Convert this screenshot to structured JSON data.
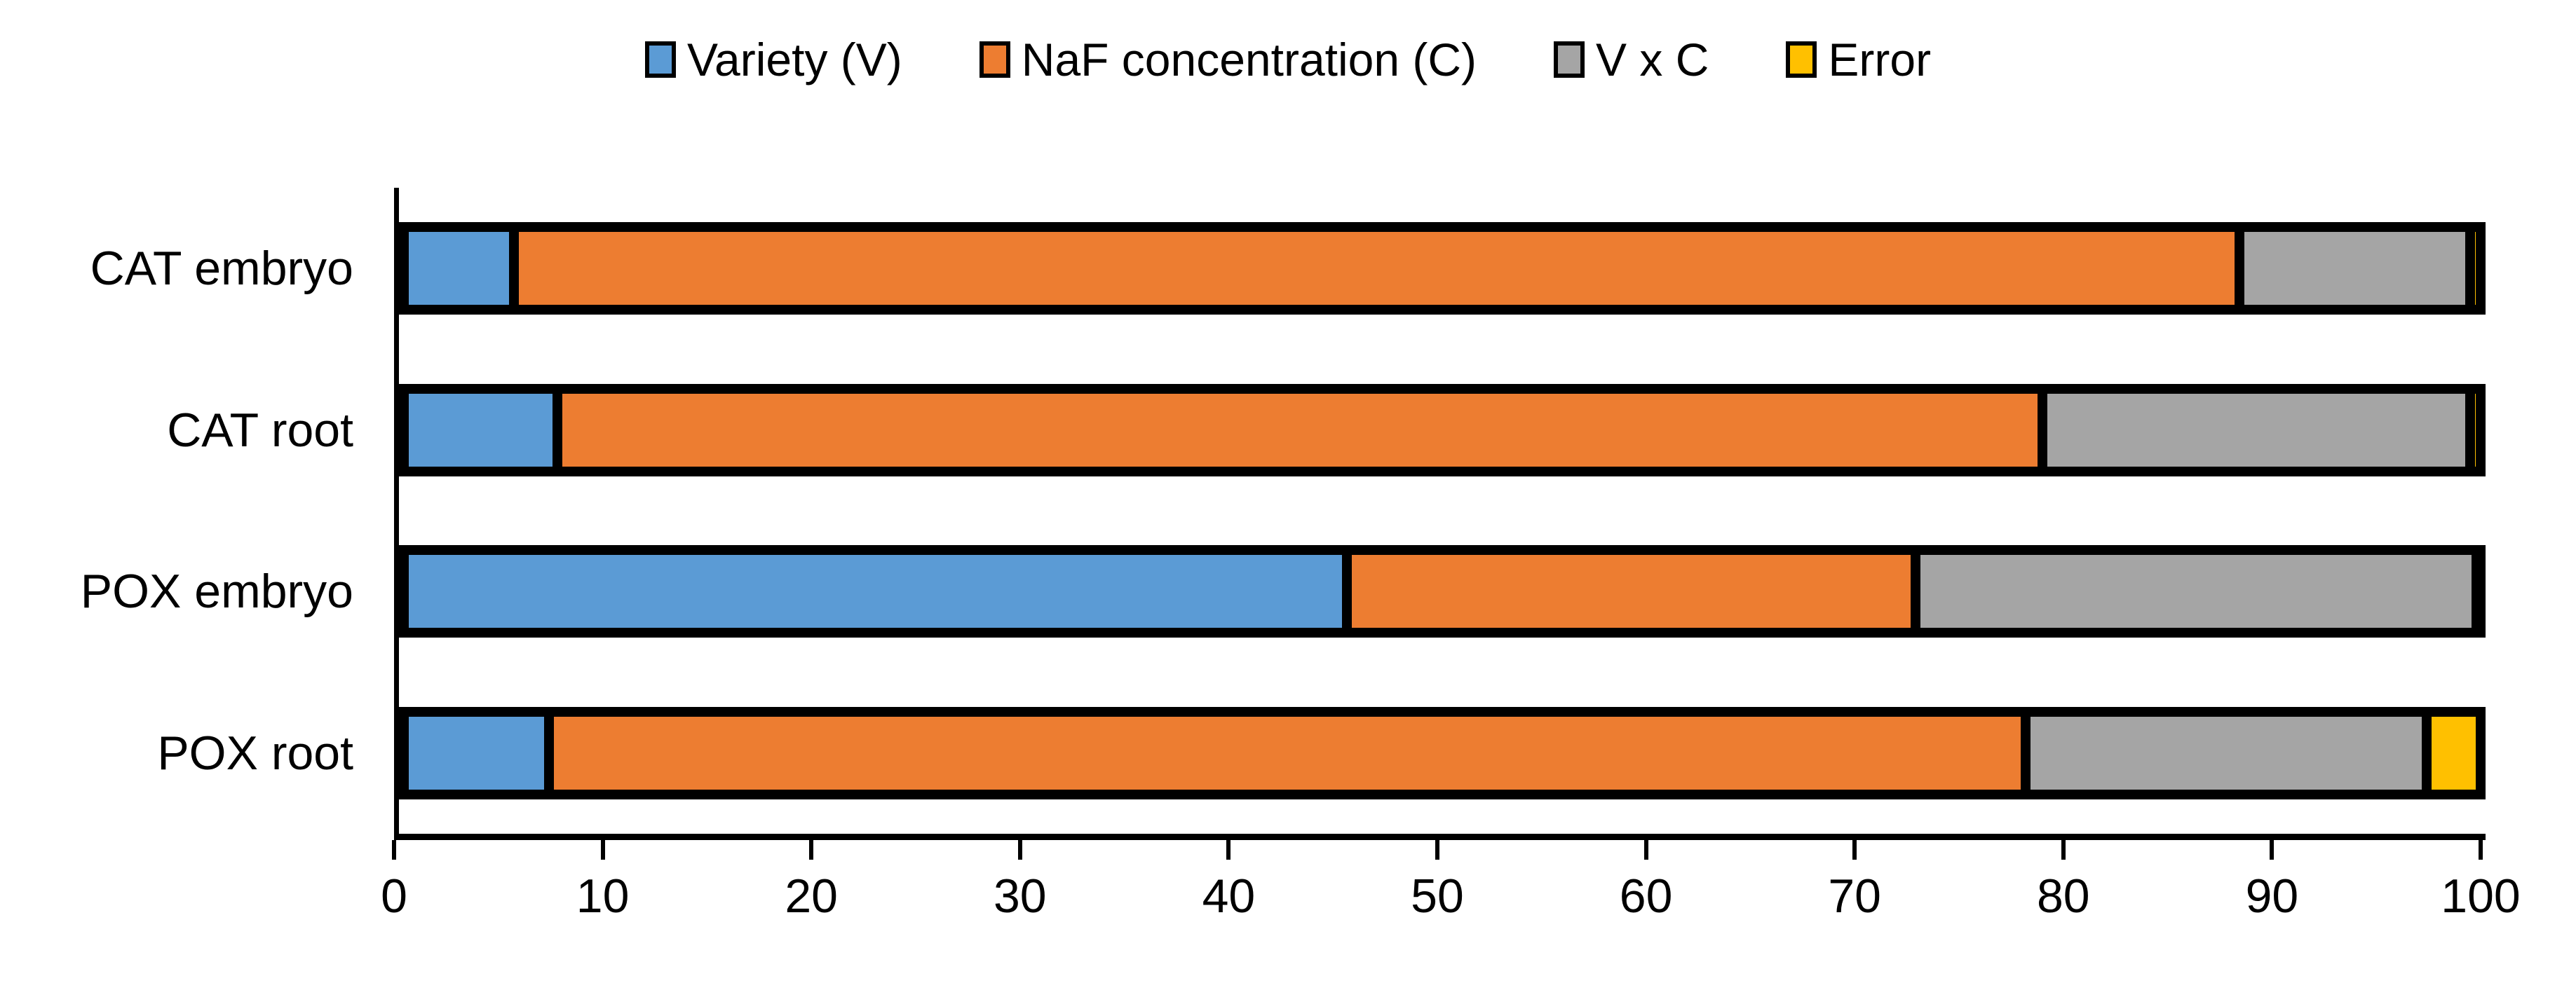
{
  "chart_data": {
    "type": "bar",
    "orientation": "horizontal",
    "stacked": true,
    "stacked_total": 100,
    "title": "",
    "xlabel": "",
    "ylabel": "",
    "xlim": [
      0,
      100
    ],
    "x_ticks": [
      0,
      10,
      20,
      30,
      40,
      50,
      60,
      70,
      80,
      90,
      100
    ],
    "grid": false,
    "legend_position": "top",
    "bar_outline_color": "#000000",
    "axis_color": "#000000",
    "categories": [
      "CAT embryo",
      "CAT root",
      "POX embryo",
      "POX root"
    ],
    "series": [
      {
        "name": "Variety (V)",
        "color": "#5B9BD5",
        "values": [
          5.3,
          7.4,
          45.4,
          7.0
        ]
      },
      {
        "name": "NaF concentration (C)",
        "color": "#ED7D31",
        "values": [
          83.1,
          71.5,
          27.4,
          71.1
        ]
      },
      {
        "name": "V x C",
        "color": "#A5A5A5",
        "values": [
          11.1,
          20.6,
          27.0,
          19.3
        ]
      },
      {
        "name": "Error",
        "color": "#FFC000",
        "values": [
          0.5,
          0.5,
          0.2,
          2.6
        ]
      }
    ]
  }
}
